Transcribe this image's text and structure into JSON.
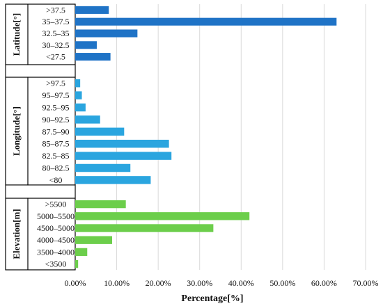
{
  "chart_data": {
    "type": "bar",
    "orientation": "horizontal",
    "xlabel": "Percentage[%]",
    "xlim": [
      0,
      70
    ],
    "xticks": [
      "0.00%",
      "10.00%",
      "20.00%",
      "30.00%",
      "40.00%",
      "50.00%",
      "60.00%",
      "70.00%"
    ],
    "grid": "vertical",
    "groups": [
      {
        "name": "Latitude[°]",
        "color": "#1f73c6",
        "categories": [
          ">37.5",
          "35–37.5",
          "32.5–35",
          "30–32.5",
          "<27.5"
        ],
        "values": [
          8.1,
          63.0,
          15.0,
          5.2,
          8.5
        ]
      },
      {
        "name": "Longitude[°]",
        "color": "#2aa5df",
        "categories": [
          ">97.5",
          "95–97.5",
          "92.5–95",
          "90–92.5",
          "87.5–90",
          "85–87.5",
          "82.5–85",
          "80–82.5",
          "<80"
        ],
        "values": [
          1.2,
          1.6,
          2.5,
          6.0,
          11.8,
          22.6,
          23.2,
          13.3,
          18.2
        ]
      },
      {
        "name": "Elevation[m]",
        "color": "#6cce4b",
        "categories": [
          ">5500",
          "5000–5500",
          "4500–5000",
          "4000–4500",
          "3500–4000",
          "<3500"
        ],
        "values": [
          12.2,
          42.0,
          33.3,
          8.9,
          2.9,
          0.7
        ]
      }
    ]
  }
}
